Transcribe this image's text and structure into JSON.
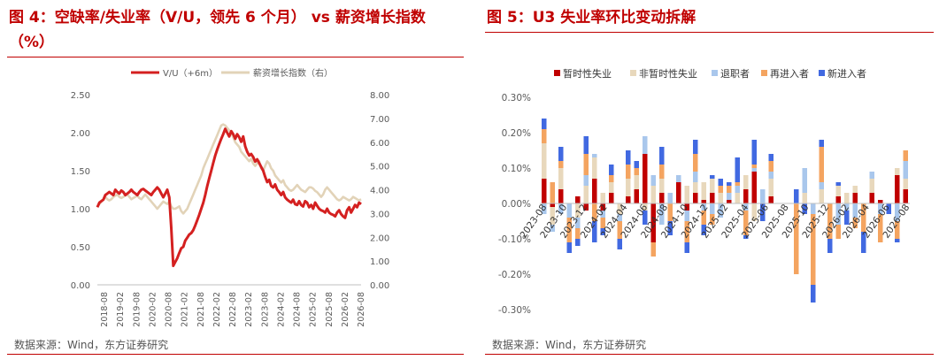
{
  "left": {
    "title": "图 4：空缺率/失业率（V/U，领先 6 个月） vs 薪资增长指数（%）",
    "source": "数据来源：Wind，东方证券研究",
    "chart_data": {
      "type": "line",
      "legend_position": "top",
      "yticks_left": [
        "2.50",
        "2.00",
        "1.50",
        "1.00",
        "0.50",
        "0.00"
      ],
      "yticks_right": [
        "8.00",
        "7.00",
        "6.00",
        "5.00",
        "4.00",
        "3.00",
        "2.00",
        "1.00",
        "0.00"
      ],
      "ylim_left": [
        0,
        2.5
      ],
      "ylim_right": [
        0,
        8
      ],
      "xticks": [
        "2018-08",
        "2019-02",
        "2019-08",
        "2020-02",
        "2020-08",
        "2021-02",
        "2021-08",
        "2022-02",
        "2022-08",
        "2023-02",
        "2023-08",
        "2024-02",
        "2024-08",
        "2025-02",
        "2025-08",
        "2026-02",
        "2026-08"
      ],
      "series": [
        {
          "name": "V/U（+6m）",
          "color": "#d42020",
          "axis": "left",
          "values": [
            1.02,
            1.08,
            1.1,
            1.12,
            1.18,
            1.2,
            1.22,
            1.2,
            1.18,
            1.25,
            1.22,
            1.2,
            1.24,
            1.22,
            1.18,
            1.2,
            1.22,
            1.25,
            1.22,
            1.2,
            1.18,
            1.22,
            1.25,
            1.26,
            1.24,
            1.22,
            1.2,
            1.18,
            1.22,
            1.25,
            1.28,
            1.25,
            1.2,
            1.15,
            1.2,
            1.25,
            1.15,
            0.75,
            0.25,
            0.3,
            0.35,
            0.42,
            0.48,
            0.5,
            0.58,
            0.62,
            0.66,
            0.68,
            0.72,
            0.78,
            0.85,
            0.92,
            1.0,
            1.08,
            1.18,
            1.3,
            1.4,
            1.5,
            1.6,
            1.7,
            1.78,
            1.85,
            1.92,
            1.98,
            2.05,
            2.0,
            1.95,
            2.02,
            1.98,
            1.92,
            1.98,
            1.94,
            1.88,
            1.95,
            1.82,
            1.75,
            1.7,
            1.72,
            1.68,
            1.62,
            1.65,
            1.6,
            1.55,
            1.5,
            1.42,
            1.35,
            1.38,
            1.3,
            1.28,
            1.32,
            1.25,
            1.22,
            1.18,
            1.22,
            1.15,
            1.12,
            1.1,
            1.08,
            1.12,
            1.06,
            1.05,
            1.1,
            1.05,
            1.03,
            1.1,
            1.08,
            1.02,
            1.05,
            1.0,
            1.08,
            1.04,
            1.0,
            0.98,
            0.97,
            0.95,
            1.0,
            0.95,
            0.93,
            0.92,
            0.9,
            0.95,
            0.98,
            0.93,
            0.9,
            0.88,
            0.98,
            1.02,
            0.95,
            1.0,
            1.05,
            1.02,
            1.08,
            1.06
          ]
        },
        {
          "name": "薪资增长指数（右）",
          "color": "#e2d3b8",
          "axis": "right",
          "values": [
            3.3,
            3.4,
            3.5,
            3.6,
            3.7,
            3.6,
            3.55,
            3.6,
            3.7,
            3.75,
            3.8,
            3.7,
            3.65,
            3.7,
            3.75,
            3.8,
            3.7,
            3.6,
            3.65,
            3.7,
            3.75,
            3.65,
            3.6,
            3.7,
            3.8,
            3.7,
            3.6,
            3.5,
            3.4,
            3.3,
            3.2,
            3.3,
            3.4,
            3.5,
            3.45,
            3.4,
            3.5,
            3.3,
            3.2,
            3.2,
            3.25,
            3.3,
            3.1,
            3.0,
            3.1,
            3.2,
            3.4,
            3.6,
            3.8,
            4.0,
            4.2,
            4.4,
            4.6,
            4.9,
            5.1,
            5.3,
            5.5,
            5.7,
            5.9,
            6.1,
            6.3,
            6.5,
            6.7,
            6.75,
            6.7,
            6.6,
            6.5,
            6.4,
            6.2,
            6.0,
            5.9,
            5.8,
            5.6,
            5.5,
            5.4,
            5.3,
            5.2,
            5.3,
            5.1,
            5.0,
            5.1,
            5.2,
            4.9,
            4.8,
            5.0,
            5.2,
            5.1,
            4.9,
            4.8,
            4.6,
            4.5,
            4.4,
            4.3,
            4.4,
            4.2,
            4.1,
            4.0,
            3.95,
            4.0,
            4.1,
            4.2,
            4.1,
            4.0,
            3.95,
            3.9,
            4.0,
            4.1,
            4.1,
            4.05,
            3.95,
            3.9,
            3.8,
            3.7,
            3.8,
            4.0,
            4.1,
            4.0,
            3.9,
            3.8,
            3.7,
            3.6,
            3.55,
            3.6,
            3.7,
            3.65,
            3.6,
            3.55,
            3.6,
            3.7,
            3.65,
            3.6,
            3.55,
            3.6
          ]
        }
      ]
    }
  },
  "right": {
    "title": "图 5：U3 失业率环比变动拆解",
    "source": "数据来源：Wind，东方证券研究",
    "chart_data": {
      "type": "bar",
      "stacked": true,
      "legend_position": "top",
      "yticks": [
        "0.30%",
        "0.20%",
        "0.10%",
        "0.00%",
        "-0.10%",
        "-0.20%",
        "-0.30%"
      ],
      "ylim": [
        -0.3,
        0.3
      ],
      "xticks": [
        "2023-08",
        "2023-10",
        "2023-12",
        "2024-02",
        "2024-04",
        "2024-06",
        "2024-08",
        "2024-10",
        "2024-12",
        "2025-02",
        "2025-04",
        "2025-06",
        "2025-08",
        "2025-10",
        "2025-12",
        "2026-02",
        "2026-04",
        "2026-06",
        "2026-08"
      ],
      "series": [
        {
          "name": "暂时性失业",
          "color": "#c00000",
          "values": [
            0.07,
            -0.01,
            0.04,
            0.0,
            0.02,
            -0.02,
            0.07,
            -0.02,
            0.03,
            0.0,
            0.02,
            0.04,
            0.14,
            -0.11,
            0.03,
            0.0,
            0.06,
            -0.02,
            0.03,
            0.01,
            0.03,
            0.0,
            0.01,
            0.0,
            0.04,
            0.09,
            0.0,
            0.02,
            0.0,
            0.0,
            0.0,
            0.0,
            0.0,
            0.0,
            0.0,
            0.02,
            0.0,
            0.03,
            0.0,
            0.03,
            0.01,
            0.0,
            0.08,
            0.04
          ]
        },
        {
          "name": "非暂时性失业",
          "color": "#e8d8bc",
          "values": [
            0.1,
            -0.05,
            0.06,
            0.0,
            -0.04,
            0.05,
            0.06,
            0.03,
            0.03,
            -0.03,
            0.05,
            0.04,
            -0.02,
            0.05,
            0.04,
            0.0,
            0.0,
            0.05,
            0.03,
            0.05,
            0.04,
            0.03,
            0.0,
            0.03,
            0.04,
            -0.05,
            0.0,
            0.05,
            0.0,
            0.0,
            0.0,
            0.03,
            0.0,
            0.04,
            0.0,
            0.03,
            0.03,
            0.02,
            0.0,
            0.04,
            0.0,
            0.0,
            0.02,
            0.03
          ]
        },
        {
          "name": "退职者",
          "color": "#a9c7ec",
          "values": [
            -0.03,
            -0.02,
            -0.03,
            -0.04,
            -0.03,
            0.03,
            0.01,
            -0.02,
            0.0,
            -0.02,
            0.0,
            0.0,
            0.05,
            0.03,
            -0.06,
            0.03,
            0.02,
            -0.03,
            0.03,
            -0.02,
            -0.03,
            -0.04,
            0.02,
            0.02,
            -0.02,
            0.01,
            0.04,
            0.02,
            0.0,
            0.0,
            0.0,
            0.07,
            -0.03,
            0.02,
            0.0,
            -0.06,
            -0.02,
            -0.04,
            0.0,
            0.02,
            -0.03,
            0.0,
            -0.05,
            0.05
          ]
        },
        {
          "name": "再进入者",
          "color": "#f4a460",
          "values": [
            0.04,
            0.06,
            0.02,
            -0.07,
            -0.03,
            0.06,
            -0.05,
            -0.03,
            0.02,
            -0.05,
            0.04,
            0.02,
            0.0,
            -0.04,
            0.04,
            -0.05,
            0.0,
            -0.06,
            0.05,
            -0.04,
            -0.03,
            0.02,
            0.02,
            0.01,
            -0.07,
            0.01,
            0.0,
            0.03,
            0.0,
            0.0,
            -0.2,
            0.0,
            -0.2,
            0.1,
            -0.1,
            -0.04,
            0.0,
            -0.03,
            -0.08,
            0.0,
            -0.08,
            0.0,
            -0.05,
            0.03
          ]
        },
        {
          "name": "新进入者",
          "color": "#4169e1",
          "values": [
            0.03,
            0.0,
            0.04,
            -0.03,
            -0.02,
            0.05,
            -0.06,
            -0.02,
            0.03,
            -0.03,
            0.04,
            0.02,
            -0.04,
            0.0,
            0.05,
            -0.04,
            0.0,
            -0.03,
            0.04,
            -0.03,
            0.01,
            0.02,
            0.01,
            0.07,
            -0.01,
            0.07,
            -0.05,
            0.02,
            0.0,
            0.0,
            0.04,
            -0.03,
            -0.05,
            0.02,
            -0.04,
            0.01,
            -0.04,
            0.0,
            -0.06,
            0.0,
            0.0,
            -0.03,
            -0.01,
            0.0
          ]
        }
      ]
    }
  }
}
